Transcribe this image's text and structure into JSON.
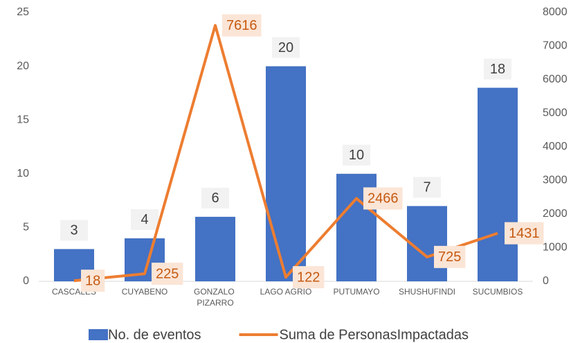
{
  "chart_data": {
    "type": "bar-line",
    "categories": [
      "CASCALES",
      "CUYABENO",
      "GONZALO PIZARRO",
      "LAGO AGRIO",
      "PUTUMAYO",
      "SHUSHUFINDI",
      "SUCUMBIOS"
    ],
    "series": [
      {
        "name": "No. de eventos",
        "color": "#4472c4",
        "type": "bar",
        "values": [
          3,
          4,
          6,
          20,
          10,
          7,
          18
        ]
      },
      {
        "name": "Suma de PersonasImpactadas",
        "color": "#ed7d31",
        "type": "line",
        "axis": "y2",
        "values": [
          18,
          225,
          7616,
          122,
          2466,
          725,
          1431
        ]
      }
    ],
    "ylim": [
      0,
      25
    ],
    "yticks": [
      0,
      5,
      10,
      15,
      20,
      25
    ],
    "y2lim": [
      0,
      8000
    ],
    "y2ticks": [
      0,
      1000,
      2000,
      3000,
      4000,
      5000,
      6000,
      7000,
      8000
    ],
    "legend": "bottom"
  }
}
